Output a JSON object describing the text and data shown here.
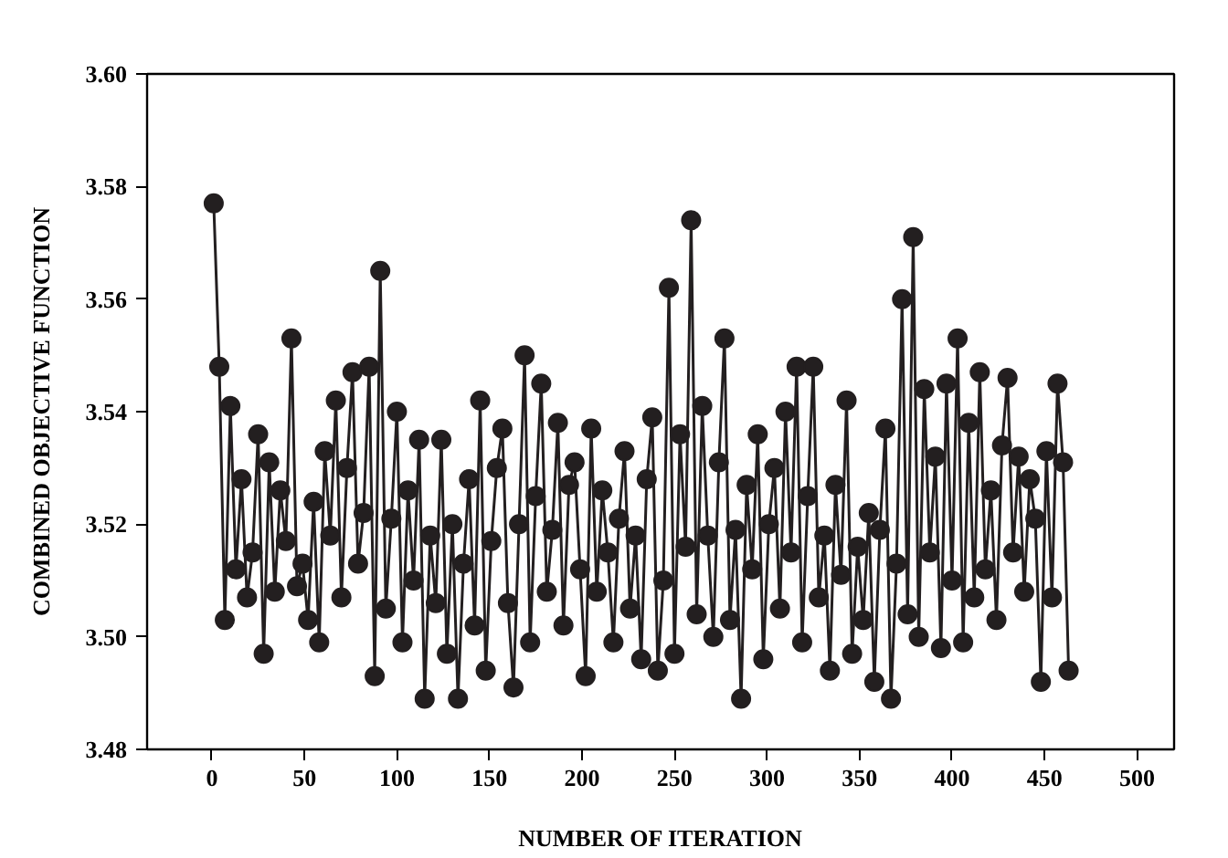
{
  "chart_data": {
    "type": "line",
    "xlabel": "NUMBER OF ITERATION",
    "ylabel": "COMBINED OBJECTIVE FUNCTION",
    "xlim": [
      -35,
      520
    ],
    "xticks": [
      0,
      50,
      100,
      150,
      200,
      250,
      300,
      350,
      400,
      450,
      500
    ],
    "ylim": [
      3.48,
      3.6
    ],
    "yticks": [
      3.48,
      {
        "value": 3.5,
        "label": "3.50"
      },
      3.52,
      3.54,
      3.56,
      3.58,
      {
        "value": 3.6,
        "label": "3.60"
      }
    ],
    "grid": false,
    "marker": "circle",
    "line_style": "solid",
    "x": [
      1,
      4,
      7,
      10,
      13,
      16,
      19,
      22,
      25,
      28,
      31,
      34,
      37,
      40,
      43,
      46,
      49,
      52,
      55,
      58,
      61,
      64,
      67,
      70,
      73,
      76,
      79,
      82,
      85,
      88,
      91,
      94,
      97,
      100,
      103,
      106,
      109,
      112,
      115,
      118,
      121,
      124,
      127,
      130,
      133,
      136,
      139,
      142,
      145,
      148,
      151,
      154,
      157,
      160,
      163,
      166,
      169,
      172,
      175,
      178,
      181,
      184,
      187,
      190,
      193,
      196,
      199,
      202,
      205,
      208,
      211,
      214,
      217,
      220,
      223,
      226,
      229,
      232,
      235,
      238,
      241,
      244,
      247,
      250,
      253,
      256,
      259,
      262,
      265,
      268,
      271,
      274,
      277,
      280,
      283,
      286,
      289,
      292,
      295,
      298,
      301,
      304,
      307,
      310,
      313,
      316,
      319,
      322,
      325,
      328,
      331,
      334,
      337,
      340,
      343,
      346,
      349,
      352,
      355,
      358,
      361,
      364,
      367,
      370,
      373,
      376,
      379,
      382,
      385,
      388,
      391,
      394,
      397,
      400,
      403,
      406,
      409,
      412,
      415,
      418,
      421,
      424,
      427,
      430,
      433,
      436,
      439,
      442,
      445,
      448,
      451,
      454,
      457,
      460,
      463
    ],
    "series": [
      {
        "color": "#231f20",
        "values": [
          3.577,
          3.548,
          3.503,
          3.541,
          3.512,
          3.528,
          3.507,
          3.515,
          3.536,
          3.497,
          3.531,
          3.508,
          3.526,
          3.517,
          3.553,
          3.509,
          3.513,
          3.503,
          3.524,
          3.499,
          3.533,
          3.518,
          3.542,
          3.507,
          3.53,
          3.547,
          3.513,
          3.522,
          3.548,
          3.493,
          3.565,
          3.505,
          3.521,
          3.54,
          3.499,
          3.526,
          3.51,
          3.535,
          3.489,
          3.518,
          3.506,
          3.535,
          3.497,
          3.52,
          3.489,
          3.513,
          3.528,
          3.502,
          3.542,
          3.494,
          3.517,
          3.53,
          3.537,
          3.506,
          3.491,
          3.52,
          3.55,
          3.499,
          3.525,
          3.545,
          3.508,
          3.519,
          3.538,
          3.502,
          3.527,
          3.531,
          3.512,
          3.493,
          3.537,
          3.508,
          3.526,
          3.515,
          3.499,
          3.521,
          3.533,
          3.505,
          3.518,
          3.496,
          3.528,
          3.539,
          3.494,
          3.51,
          3.562,
          3.497,
          3.536,
          3.516,
          3.574,
          3.504,
          3.541,
          3.518,
          3.5,
          3.531,
          3.553,
          3.503,
          3.519,
          3.489,
          3.527,
          3.512,
          3.536,
          3.496,
          3.52,
          3.53,
          3.505,
          3.54,
          3.515,
          3.548,
          3.499,
          3.525,
          3.548,
          3.507,
          3.518,
          3.494,
          3.527,
          3.511,
          3.542,
          3.497,
          3.516,
          3.503,
          3.522,
          3.492,
          3.519,
          3.537,
          3.489,
          3.513,
          3.56,
          3.504,
          3.571,
          3.5,
          3.544,
          3.515,
          3.532,
          3.498,
          3.545,
          3.51,
          3.553,
          3.499,
          3.538,
          3.507,
          3.547,
          3.512,
          3.526,
          3.503,
          3.534,
          3.546,
          3.515,
          3.532,
          3.508,
          3.528,
          3.521,
          3.492,
          3.533,
          3.507,
          3.545,
          3.531,
          3.494
        ]
      }
    ]
  }
}
